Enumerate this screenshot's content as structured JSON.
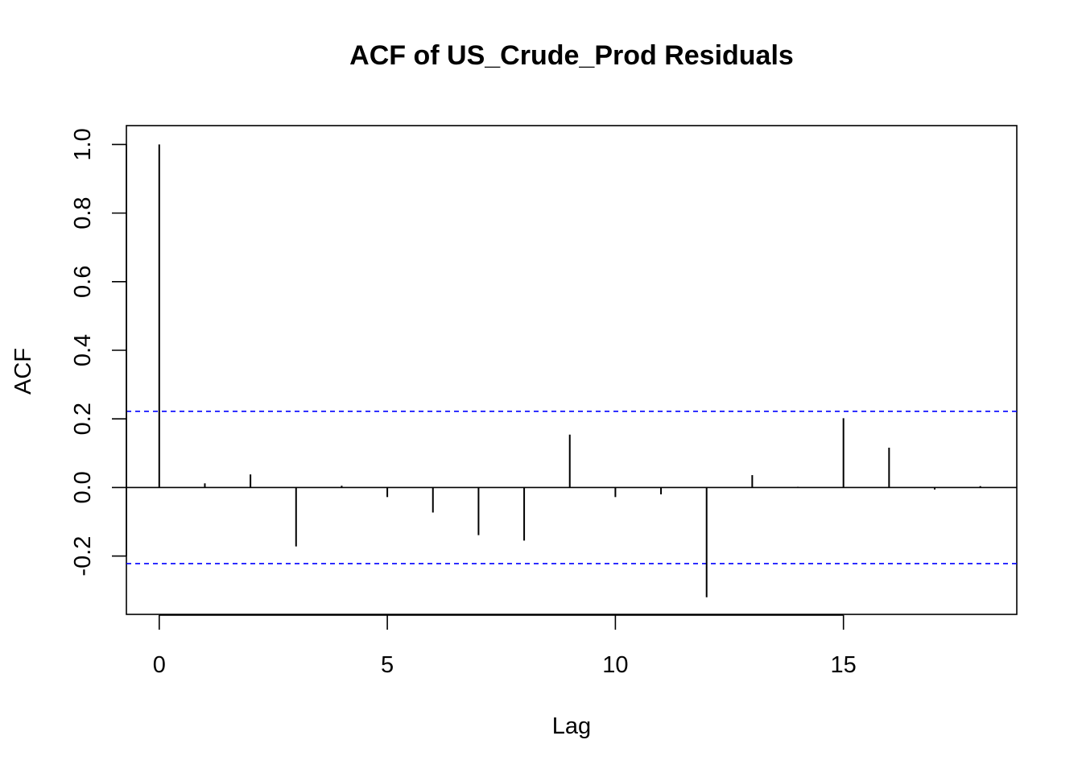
{
  "chart_data": {
    "type": "bar",
    "title": "ACF of US_Crude_Prod Residuals",
    "xlabel": "Lag",
    "ylabel": "ACF",
    "x": [
      0,
      1,
      2,
      3,
      4,
      5,
      6,
      7,
      8,
      9,
      10,
      11,
      12,
      13,
      14,
      15,
      16,
      17,
      18
    ],
    "values": [
      1.0,
      0.012,
      0.038,
      -0.172,
      0.005,
      -0.028,
      -0.073,
      -0.139,
      -0.155,
      0.154,
      -0.028,
      -0.02,
      -0.32,
      0.036,
      0.002,
      0.202,
      0.116,
      -0.006,
      0.004
    ],
    "xlim": [
      -0.72,
      18.8
    ],
    "ylim": [
      -0.37,
      1.055
    ],
    "x_ticks": [
      "0",
      "5",
      "10",
      "15"
    ],
    "y_ticks": [
      "-0.2",
      "0.0",
      "0.2",
      "0.4",
      "0.6",
      "0.8",
      "1.0"
    ],
    "confidence_limits": [
      0.222,
      -0.222
    ],
    "confidence_color": "#0000ff",
    "bar_color": "#000000",
    "zero_line": true,
    "grid": false
  }
}
